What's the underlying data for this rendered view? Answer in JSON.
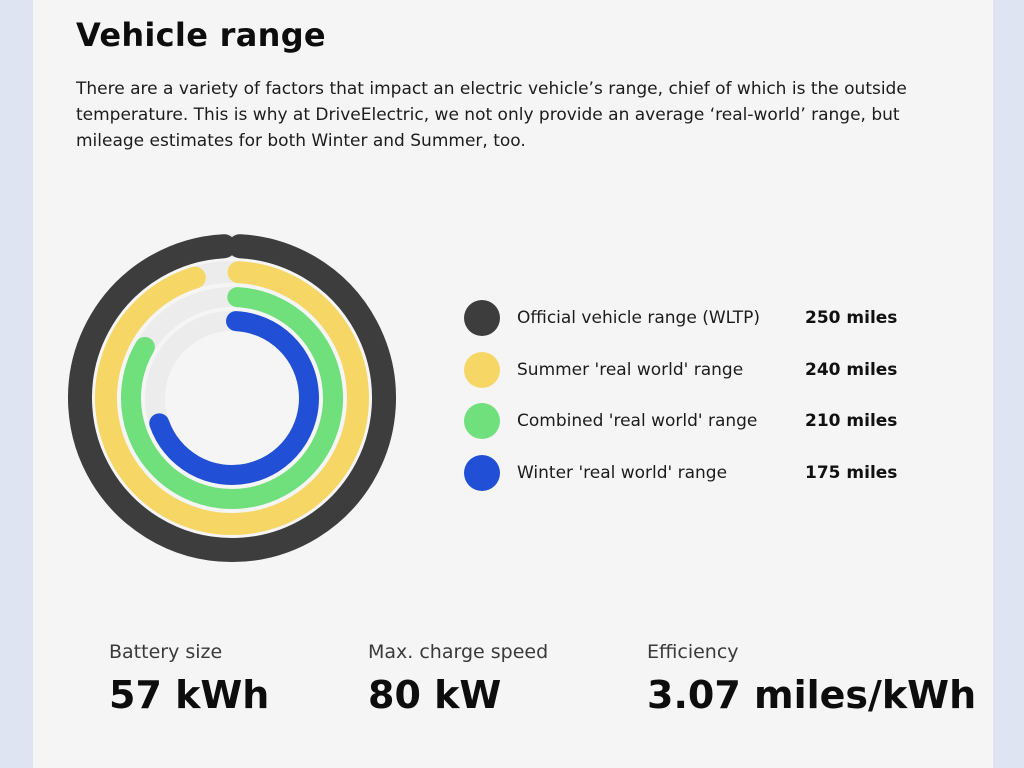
{
  "section": {
    "title": "Vehicle range",
    "description": "There are a variety of factors that impact an electric vehicle’s range, chief of which is the outside temperature. This is why at DriveElectric, we not only provide an average ‘real-world’ range, but mileage estimates for both Winter and Summer, too."
  },
  "ranges": [
    {
      "label": "Official vehicle range (WLTP)",
      "value": "250 miles",
      "miles": 250,
      "color": "#3d3d3d"
    },
    {
      "label": "Summer 'real world' range",
      "value": "240 miles",
      "miles": 240,
      "color": "#f6d765"
    },
    {
      "label": "Combined 'real world' range",
      "value": "210 miles",
      "miles": 210,
      "color": "#6fe07c"
    },
    {
      "label": "Winter 'real world' range",
      "value": "175 miles",
      "miles": 175,
      "color": "#2150d6"
    }
  ],
  "chart_data": {
    "type": "radial-bar",
    "categories": [
      "Official vehicle range (WLTP)",
      "Summer 'real world' range",
      "Combined 'real world' range",
      "Winter 'real world' range"
    ],
    "values": [
      250,
      240,
      210,
      175
    ],
    "max": 250,
    "unit": "miles",
    "colors": [
      "#3d3d3d",
      "#f6d765",
      "#6fe07c",
      "#2150d6"
    ],
    "legend_position": "right"
  },
  "stats": [
    {
      "label": "Battery size",
      "value": "57 kWh"
    },
    {
      "label": "Max. charge speed",
      "value": "80 kW"
    },
    {
      "label": "Efficiency",
      "value": "3.07 miles/kWh"
    }
  ]
}
